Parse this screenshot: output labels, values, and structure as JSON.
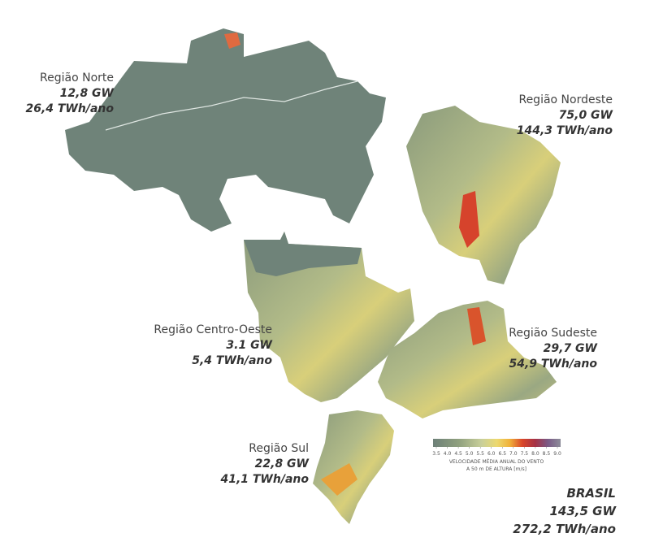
{
  "regions": [
    {
      "name": "Região Norte",
      "power": "12,8 GW",
      "energy": "26,4 TWh/ano"
    },
    {
      "name": "Região Nordeste",
      "power": "75,0 GW",
      "energy": "144,3 TWh/ano"
    },
    {
      "name": "Região Centro-Oeste",
      "power": "3.1 GW",
      "energy": "5,4 TWh/ano"
    },
    {
      "name": "Região Sudeste",
      "power": "29,7 GW",
      "energy": "54,9 TWh/ano"
    },
    {
      "name": "Região Sul",
      "power": "22,8 GW",
      "energy": "41,1 TWh/ano"
    }
  ],
  "total": {
    "name": "BRASIL",
    "power": "143,5 GW",
    "energy": "272,2 TWh/ano"
  },
  "legend": {
    "range": [
      3.5,
      9.0
    ],
    "ticks": [
      3.5,
      {
        "value": 4.0,
        "label": "4.0"
      },
      4.5,
      {
        "value": 5.0,
        "label": "5.0"
      },
      5.5,
      {
        "value": 6.0,
        "label": "6.0"
      },
      6.5,
      {
        "value": 7.0,
        "label": "7.0"
      },
      7.5,
      {
        "value": 8.0,
        "label": "8.0"
      },
      8.5,
      {
        "value": 9.0,
        "label": "9.0"
      }
    ],
    "caption": [
      "VELOCIDADE MÉDIA ANUAL DO VENTO",
      "A 50 m DE ALTURA  [m/s]"
    ]
  }
}
